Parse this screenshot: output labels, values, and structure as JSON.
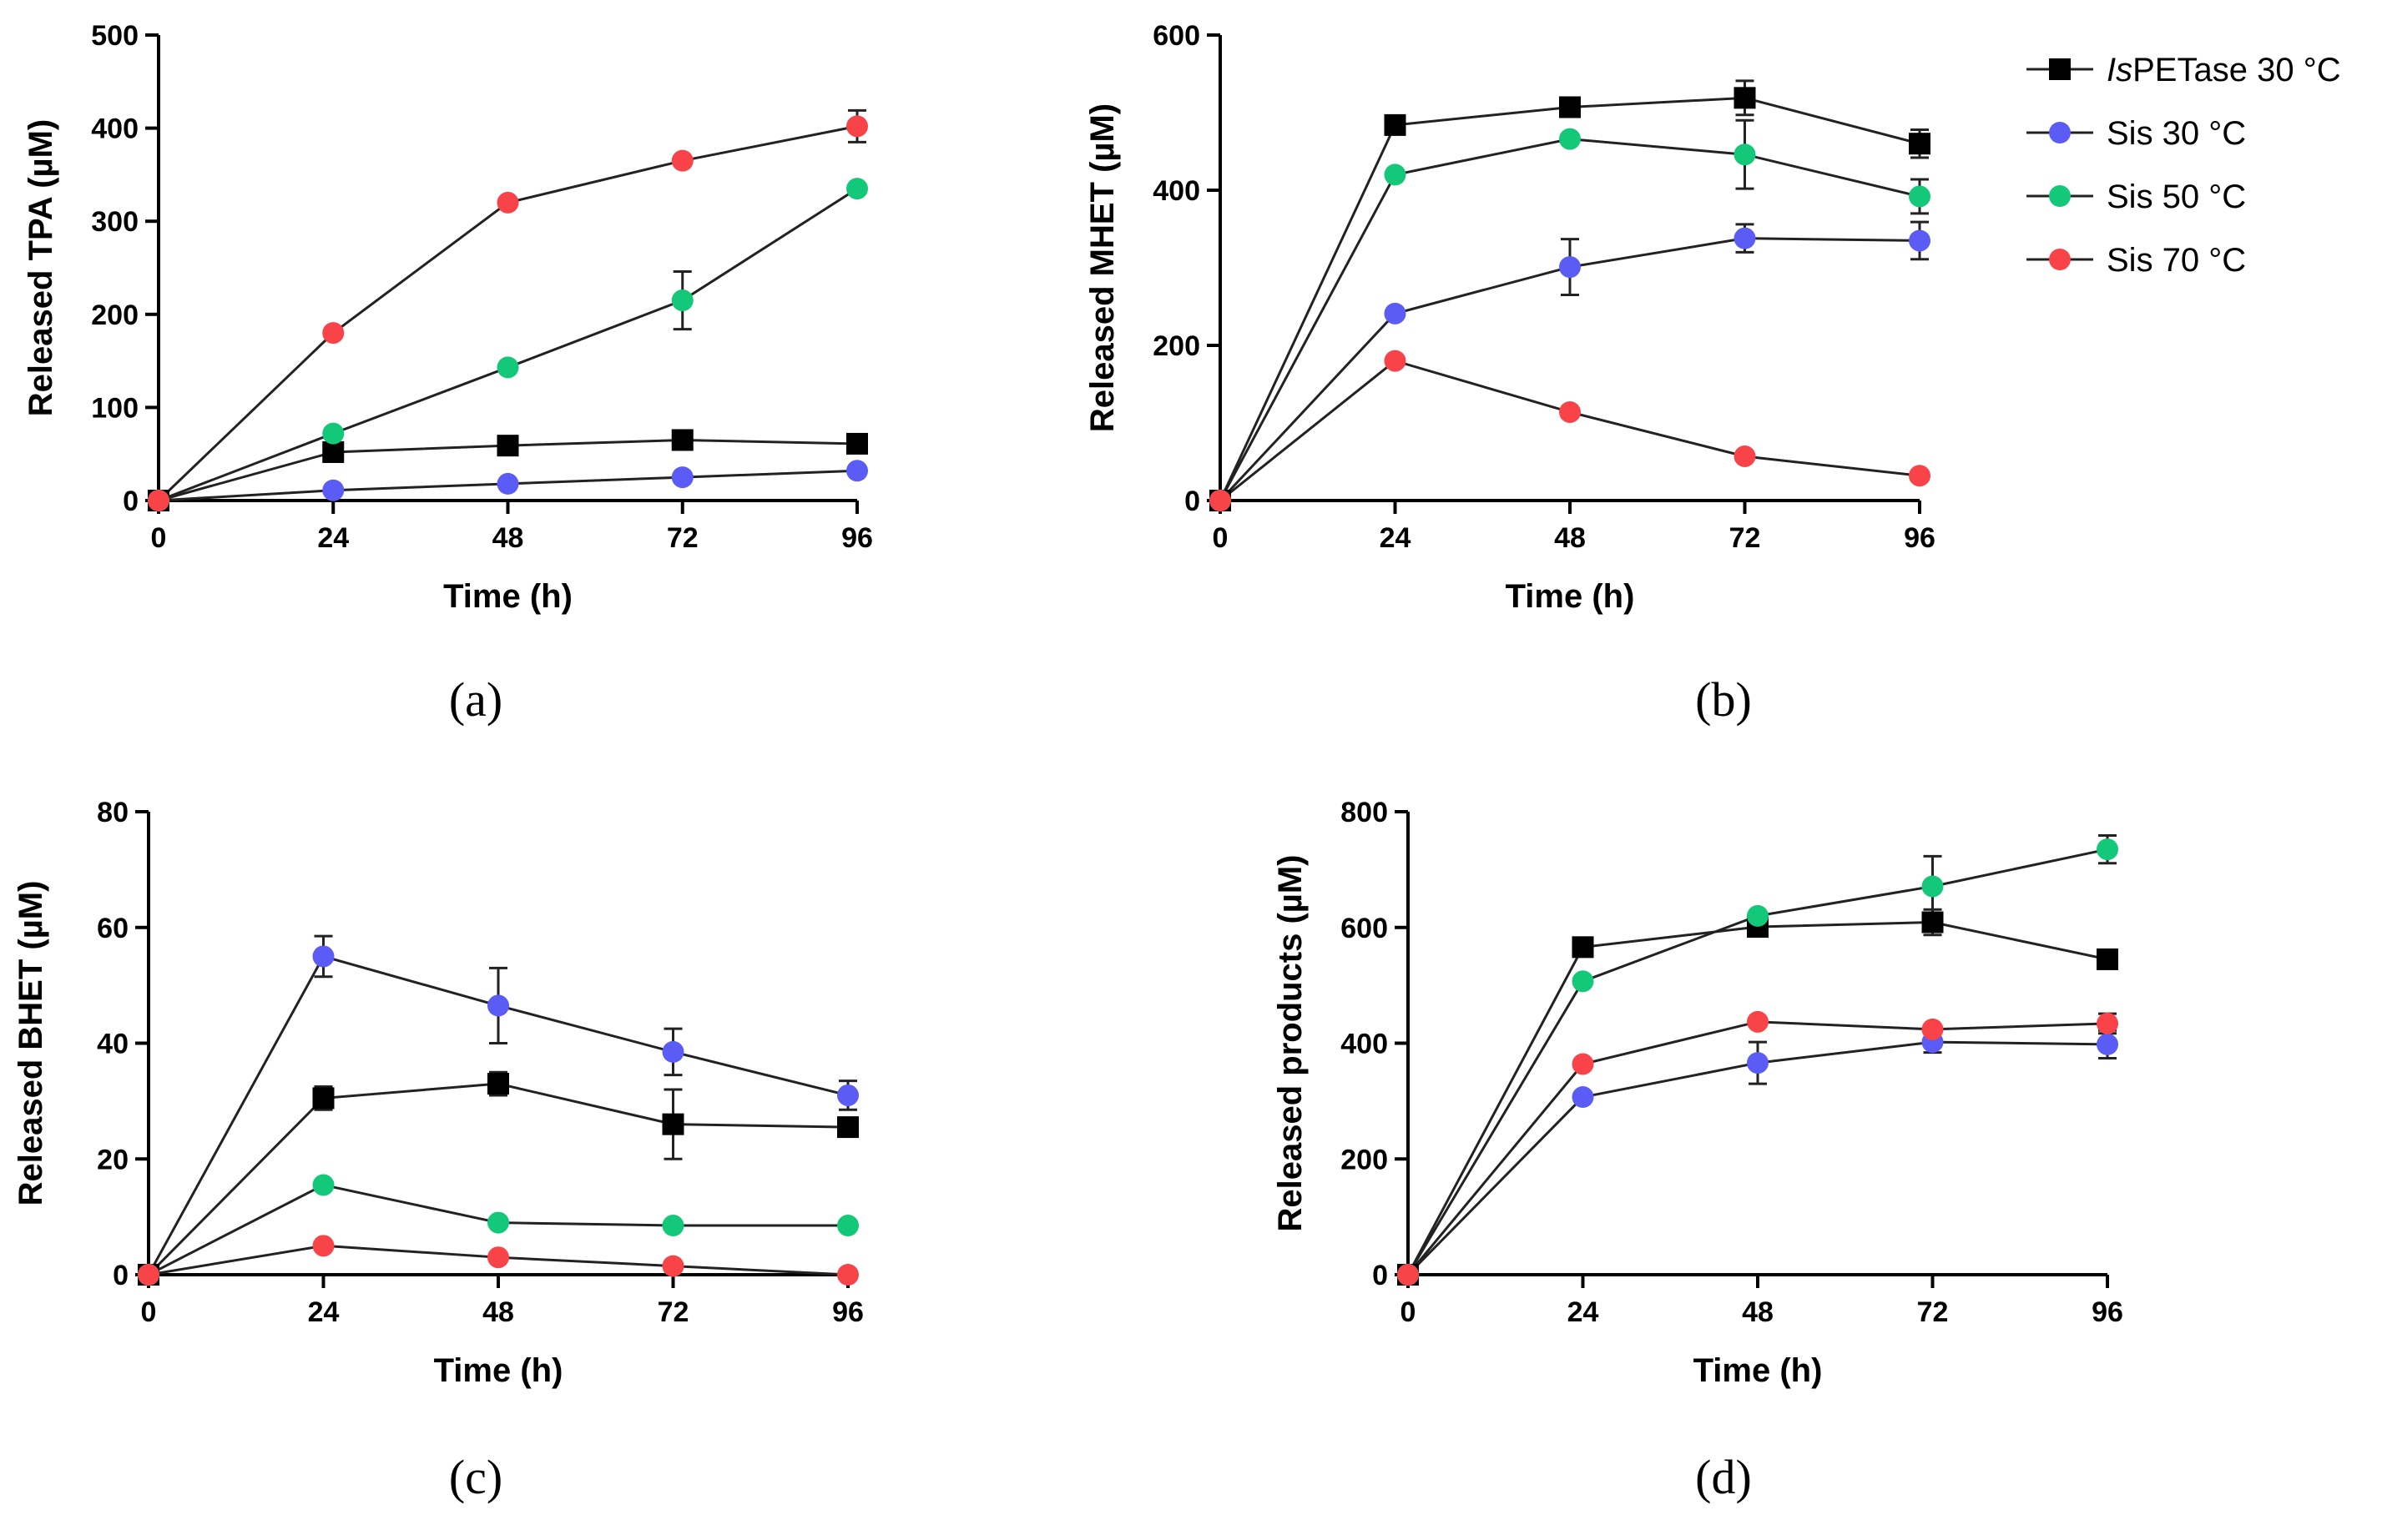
{
  "colors": {
    "IsPETase": "#000000",
    "Sis30": "#5b5bf5",
    "Sis50": "#14c87a",
    "Sis70": "#f84448",
    "axis": "#000000",
    "line": "#222222"
  },
  "legend": {
    "entries": [
      {
        "key": "IsPETase",
        "label_italic": "Is",
        "label_rest": "PETase 30 °C",
        "marker": "square"
      },
      {
        "key": "Sis30",
        "label": "Sis 30 °C",
        "marker": "circle"
      },
      {
        "key": "Sis50",
        "label": "Sis 50 °C",
        "marker": "circle"
      },
      {
        "key": "Sis70",
        "label": "Sis 70 °C",
        "marker": "circle"
      }
    ]
  },
  "chart_data": [
    {
      "id": "a",
      "caption": "(a)",
      "type": "line",
      "xlabel": "Time (h)",
      "ylabel": "Released TPA (µM)",
      "x": [
        0,
        24,
        48,
        72,
        96
      ],
      "xticks": [
        "0",
        "24",
        "48",
        "72",
        "96"
      ],
      "ylim": [
        0,
        500
      ],
      "yticks": [
        0,
        100,
        200,
        300,
        400,
        500
      ],
      "series": [
        {
          "key": "IsPETase",
          "values": [
            0,
            52,
            59,
            65,
            61
          ],
          "errors": [
            0,
            0,
            0,
            0,
            0
          ]
        },
        {
          "key": "Sis30",
          "values": [
            0,
            11,
            18,
            25,
            32
          ],
          "errors": [
            0,
            0,
            0,
            0,
            0
          ]
        },
        {
          "key": "Sis50",
          "values": [
            0,
            72,
            143,
            215,
            335
          ],
          "errors": [
            0,
            0,
            0,
            31,
            0
          ]
        },
        {
          "key": "Sis70",
          "values": [
            0,
            180,
            320,
            365,
            402
          ],
          "errors": [
            0,
            0,
            0,
            0,
            17
          ]
        }
      ]
    },
    {
      "id": "b",
      "caption": "(b)",
      "type": "line",
      "xlabel": "Time (h)",
      "ylabel": "Released MHET (µM)",
      "x": [
        0,
        24,
        48,
        72,
        96
      ],
      "xticks": [
        "0",
        "24",
        "48",
        "72",
        "96"
      ],
      "ylim": [
        0,
        600
      ],
      "yticks": [
        0,
        200,
        400,
        600
      ],
      "series": [
        {
          "key": "IsPETase",
          "values": [
            0,
            484,
            507,
            519,
            460
          ],
          "errors": [
            0,
            0,
            0,
            22,
            18
          ]
        },
        {
          "key": "Sis30",
          "values": [
            0,
            241,
            301,
            338,
            335
          ],
          "errors": [
            0,
            0,
            36,
            18,
            24
          ]
        },
        {
          "key": "Sis50",
          "values": [
            0,
            420,
            466,
            446,
            392
          ],
          "errors": [
            0,
            0,
            0,
            44,
            22
          ]
        },
        {
          "key": "Sis70",
          "values": [
            0,
            180,
            114,
            57,
            32
          ],
          "errors": [
            0,
            0,
            0,
            0,
            0
          ]
        }
      ]
    },
    {
      "id": "c",
      "caption": "(c)",
      "type": "line",
      "xlabel": "Time (h)",
      "ylabel": "Released BHET (µM)",
      "x": [
        0,
        24,
        48,
        72,
        96
      ],
      "xticks": [
        "0",
        "24",
        "48",
        "72",
        "96"
      ],
      "ylim": [
        0,
        80
      ],
      "yticks": [
        0,
        20,
        40,
        60,
        80
      ],
      "series": [
        {
          "key": "IsPETase",
          "values": [
            0,
            30.5,
            33,
            26,
            25.5
          ],
          "errors": [
            0,
            2,
            2,
            6,
            1
          ]
        },
        {
          "key": "Sis30",
          "values": [
            0,
            55,
            46.5,
            38.5,
            31
          ],
          "errors": [
            0,
            3.5,
            6.5,
            4,
            2.5
          ]
        },
        {
          "key": "Sis50",
          "values": [
            0,
            15.5,
            9,
            8.5,
            8.5
          ],
          "errors": [
            0,
            0,
            0,
            0,
            0
          ]
        },
        {
          "key": "Sis70",
          "values": [
            0,
            5,
            3,
            1.5,
            0
          ],
          "errors": [
            0,
            0,
            0,
            0,
            0
          ]
        }
      ]
    },
    {
      "id": "d",
      "caption": "(d)",
      "type": "line",
      "xlabel": "Time (h)",
      "ylabel": "Released products (µM)",
      "x": [
        0,
        24,
        48,
        72,
        96
      ],
      "xticks": [
        "0",
        "24",
        "48",
        "72",
        "96"
      ],
      "ylim": [
        0,
        800
      ],
      "yticks": [
        0,
        200,
        400,
        600,
        800
      ],
      "series": [
        {
          "key": "IsPETase",
          "values": [
            0,
            566,
            601,
            609,
            545
          ],
          "errors": [
            0,
            0,
            0,
            22,
            15
          ]
        },
        {
          "key": "Sis30",
          "values": [
            0,
            307,
            366,
            402,
            398
          ],
          "errors": [
            0,
            0,
            36,
            18,
            24
          ]
        },
        {
          "key": "Sis50",
          "values": [
            0,
            507,
            620,
            671,
            735
          ],
          "errors": [
            0,
            0,
            0,
            52,
            24
          ]
        },
        {
          "key": "Sis70",
          "values": [
            0,
            364,
            437,
            424,
            434
          ],
          "errors": [
            0,
            0,
            0,
            0,
            17
          ]
        }
      ]
    }
  ]
}
